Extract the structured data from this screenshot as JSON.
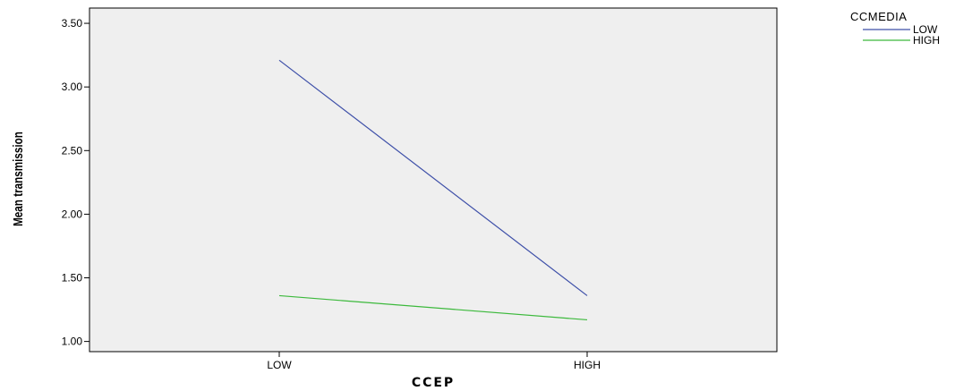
{
  "chart_data": {
    "type": "line",
    "categories": [
      "LOW",
      "HIGH"
    ],
    "series": [
      {
        "name": "LOW",
        "values": [
          3.21,
          1.36
        ],
        "color": "#3d4fa8"
      },
      {
        "name": "HIGH",
        "values": [
          1.36,
          1.17
        ],
        "color": "#3cb93c"
      }
    ],
    "xlabel": "CCEP",
    "ylabel": "Mean transmission",
    "ylim": [
      0.92,
      3.62
    ],
    "yticks": [
      1.0,
      1.5,
      2.0,
      2.5,
      3.0,
      3.5
    ],
    "yticklabels": [
      "1.00",
      "1.50",
      "2.00",
      "2.50",
      "3.00",
      "3.50"
    ],
    "legend_title": "CCMEDIA",
    "legend_position": "top-right",
    "plot_background": "#efefef",
    "grid": false
  }
}
